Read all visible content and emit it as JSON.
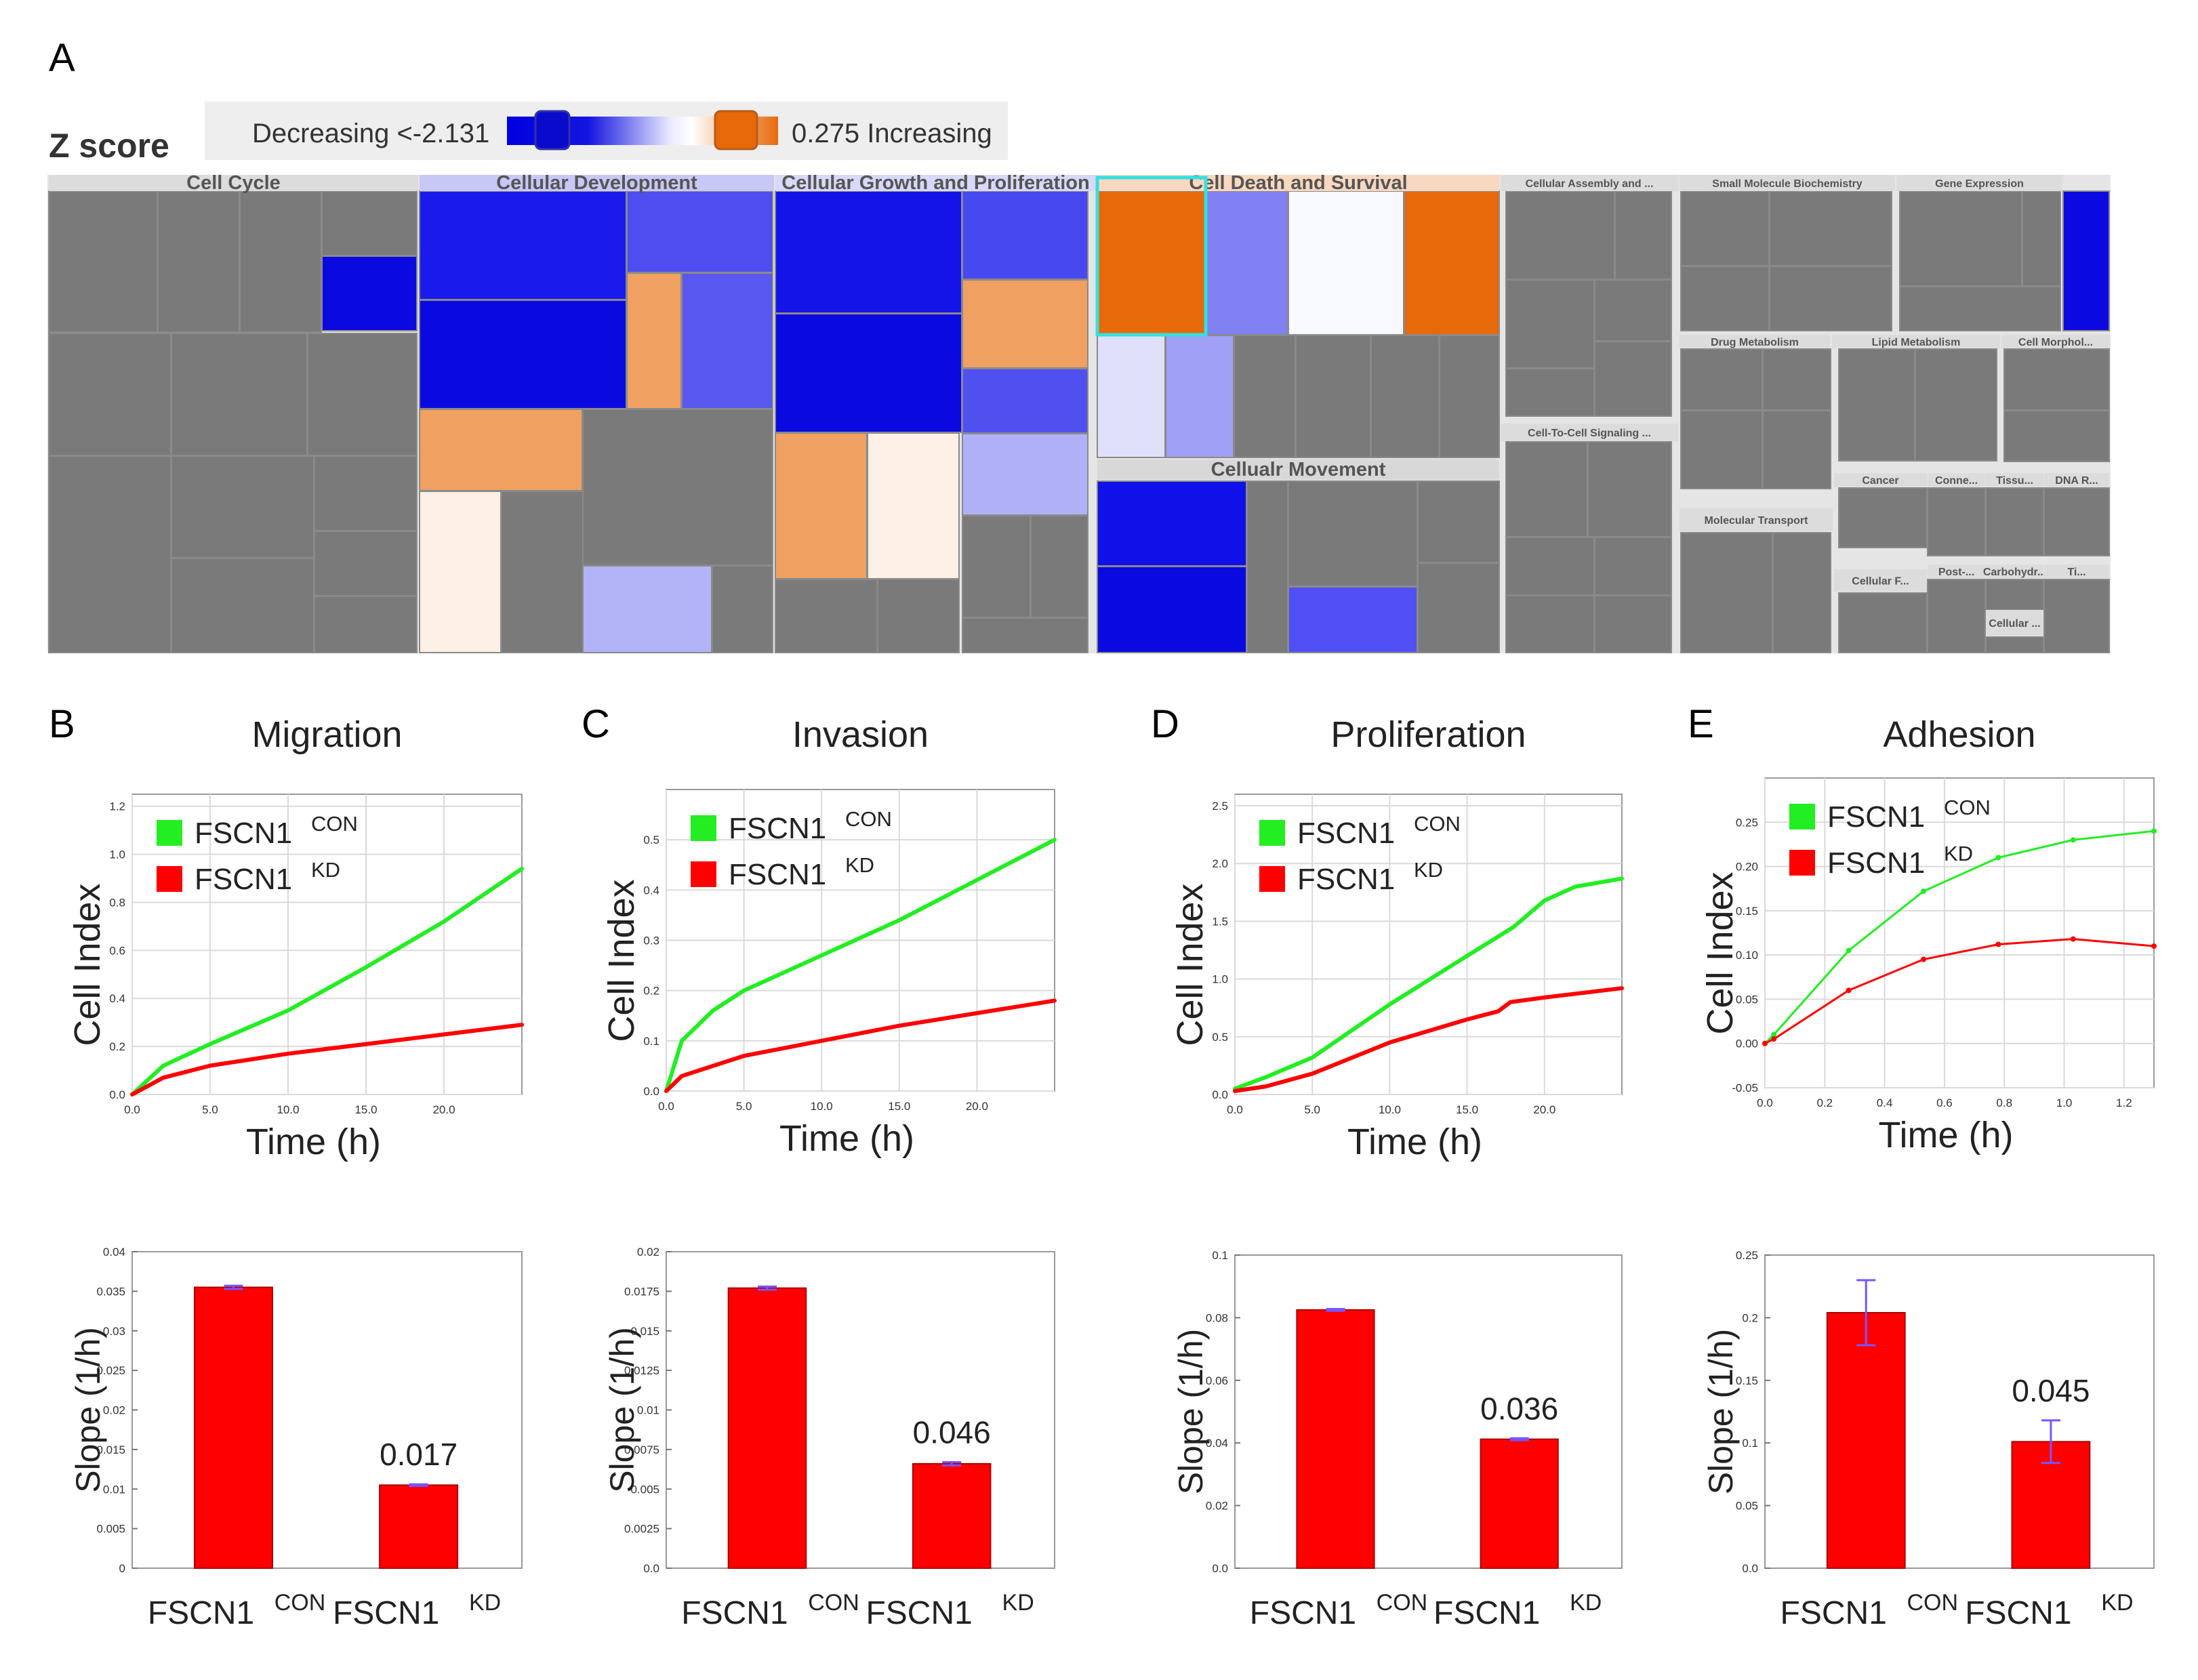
{
  "panel_letters": [
    "A",
    "B",
    "C",
    "D",
    "E"
  ],
  "colors": {
    "con": "#22ee22",
    "kd": "#ff0000",
    "decreasing": "#0a0ae0",
    "increasing": "#e8690a",
    "neutral": "#7a7a7a",
    "error": "#7755ff"
  },
  "panel_a": {
    "zscore_title": "Z score",
    "legend_left": "Decreasing <-2.131",
    "legend_right": "0.275 Increasing",
    "categories": [
      "Cell Cycle",
      "Cellular Development",
      "Cellular Growth and Proliferation",
      "Cell Death and Survival",
      "Cellular Assembly and ...",
      "Small Molecule Biochemistry",
      "Gene Expression",
      "Cellualr Movement",
      "Cell-To-Cell Signaling ...",
      "Drug Metabolism",
      "Lipid Metabolism",
      "Cell Morphol...",
      "Molecular Transport",
      "Cancer",
      "Conne...",
      "Tissu...",
      "DNA R...",
      "Cellular F...",
      "Post-...",
      "Carbohydr...",
      "Ti...",
      "Cellular ..."
    ]
  },
  "chart_data": [
    {
      "type": "line",
      "panel": "B",
      "title": "Migration",
      "xlabel": "Time (h)",
      "ylabel": "Cell Index",
      "xlim": [
        0,
        25
      ],
      "ylim": [
        0,
        1.25
      ],
      "xticks": [
        "0.0",
        "5.0",
        "10.0",
        "15.0",
        "20.0"
      ],
      "yticks": [
        "0.0",
        "0.2",
        "0.4",
        "0.6",
        "0.8",
        "1.0",
        "1.2"
      ],
      "legend": [
        "FSCN1",
        "CON",
        "FSCN1",
        "KD"
      ],
      "series": [
        {
          "name": "FSCN1 CON",
          "x": [
            0,
            2,
            5,
            10,
            15,
            20,
            25
          ],
          "y": [
            0.0,
            0.12,
            0.21,
            0.35,
            0.53,
            0.72,
            0.94
          ]
        },
        {
          "name": "FSCN1 KD",
          "x": [
            0,
            2,
            5,
            10,
            15,
            20,
            25
          ],
          "y": [
            0.0,
            0.07,
            0.12,
            0.17,
            0.21,
            0.25,
            0.29
          ]
        }
      ]
    },
    {
      "type": "line",
      "panel": "C",
      "title": "Invasion",
      "xlabel": "Time (h)",
      "ylabel": "Cell Index",
      "xlim": [
        0,
        25
      ],
      "ylim": [
        0,
        0.6
      ],
      "xticks": [
        "0.0",
        "5.0",
        "10.0",
        "15.0",
        "20.0"
      ],
      "yticks": [
        "0.0",
        "0.1",
        "0.2",
        "0.3",
        "0.4",
        "0.5"
      ],
      "legend": [
        "FSCN1",
        "CON",
        "FSCN1",
        "KD"
      ],
      "series": [
        {
          "name": "FSCN1 CON",
          "x": [
            0,
            1,
            3,
            5,
            10,
            15,
            20,
            25
          ],
          "y": [
            0.0,
            0.1,
            0.16,
            0.2,
            0.27,
            0.34,
            0.42,
            0.5
          ]
        },
        {
          "name": "FSCN1 KD",
          "x": [
            0,
            1,
            3,
            5,
            10,
            15,
            20,
            25
          ],
          "y": [
            0.0,
            0.03,
            0.05,
            0.07,
            0.1,
            0.13,
            0.155,
            0.18
          ]
        }
      ]
    },
    {
      "type": "line",
      "panel": "D",
      "title": "Proliferation",
      "xlabel": "Time (h)",
      "ylabel": "Cell Index",
      "xlim": [
        0,
        25
      ],
      "ylim": [
        0,
        2.6
      ],
      "xticks": [
        "0.0",
        "5.0",
        "10.0",
        "15.0",
        "20.0"
      ],
      "yticks": [
        "0.0",
        "0.5",
        "1.0",
        "1.5",
        "2.0",
        "2.5"
      ],
      "legend": [
        "FSCN1",
        "CON",
        "FSCN1",
        "KD"
      ],
      "series": [
        {
          "name": "FSCN1 CON",
          "x": [
            0,
            2,
            5,
            10,
            15,
            18,
            20,
            22,
            25
          ],
          "y": [
            0.05,
            0.15,
            0.32,
            0.78,
            1.2,
            1.45,
            1.68,
            1.8,
            1.87
          ]
        },
        {
          "name": "FSCN1 KD",
          "x": [
            0,
            2,
            5,
            10,
            15,
            17,
            17.8,
            20,
            25
          ],
          "y": [
            0.03,
            0.07,
            0.18,
            0.45,
            0.65,
            0.72,
            0.8,
            0.84,
            0.92
          ]
        }
      ]
    },
    {
      "type": "line",
      "panel": "E",
      "title": "Adhesion",
      "xlabel": "Time (h)",
      "ylabel": "Cell Index",
      "xlim": [
        0,
        1.3
      ],
      "ylim": [
        -0.05,
        0.3
      ],
      "xticks": [
        "0.0",
        "0.2",
        "0.4",
        "0.6",
        "0.8",
        "1.0",
        "1.2"
      ],
      "yticks": [
        "-0.05",
        "0.00",
        "0.05",
        "0.10",
        "0.15",
        "0.20",
        "0.25"
      ],
      "legend": [
        "FSCN1",
        "CON",
        "FSCN1",
        "KD"
      ],
      "series": [
        {
          "name": "FSCN1 CON",
          "x": [
            0.0,
            0.03,
            0.28,
            0.53,
            0.78,
            1.03,
            1.3
          ],
          "y": [
            0.0,
            0.01,
            0.105,
            0.172,
            0.21,
            0.23,
            0.24
          ]
        },
        {
          "name": "FSCN1 KD",
          "x": [
            0.0,
            0.03,
            0.28,
            0.53,
            0.78,
            1.03,
            1.3
          ],
          "y": [
            0.0,
            0.005,
            0.06,
            0.095,
            0.112,
            0.118,
            0.11
          ]
        }
      ]
    },
    {
      "type": "bar",
      "panel": "B",
      "ylabel": "Slope (1/h)",
      "categories": [
        "FSCN1 CON",
        "FSCN1 KD"
      ],
      "category_labels": [
        "FSCN1",
        "CON",
        "FSCN1",
        "KD"
      ],
      "values": [
        0.0355,
        0.0105
      ],
      "errors": [
        0.0002,
        0.0001
      ],
      "ylim": [
        0,
        0.04
      ],
      "yticks": [
        "0",
        "0.005",
        "0.01",
        "0.015",
        "0.02",
        "0.025",
        "0.03",
        "0.035",
        "0.04"
      ],
      "annotation": "0.017"
    },
    {
      "type": "bar",
      "panel": "C",
      "ylabel": "Slope (1/h)",
      "categories": [
        "FSCN1 CON",
        "FSCN1 KD"
      ],
      "category_labels": [
        "FSCN1",
        "CON",
        "FSCN1",
        "KD"
      ],
      "values": [
        0.0177,
        0.0066
      ],
      "errors": [
        0.0001,
        0.0001
      ],
      "ylim": [
        0,
        0.02
      ],
      "yticks": [
        "0.0",
        "0.0025",
        "0.005",
        "0.0075",
        "0.01",
        "0.0125",
        "0.015",
        "0.0175",
        "0.02"
      ],
      "annotation": "0.046"
    },
    {
      "type": "bar",
      "panel": "D",
      "ylabel": "Slope (1/h)",
      "categories": [
        "FSCN1 CON",
        "FSCN1 KD"
      ],
      "category_labels": [
        "FSCN1",
        "CON",
        "FSCN1",
        "KD"
      ],
      "values": [
        0.0825,
        0.0412
      ],
      "errors": [
        0.0003,
        0.0003
      ],
      "ylim": [
        0,
        0.1
      ],
      "yticks": [
        "0.0",
        "0.02",
        "0.04",
        "0.06",
        "0.08",
        "0.1"
      ],
      "annotation": "0.036"
    },
    {
      "type": "bar",
      "panel": "E",
      "ylabel": "Slope (1/h)",
      "categories": [
        "FSCN1 CON",
        "FSCN1 KD"
      ],
      "category_labels": [
        "FSCN1",
        "CON",
        "FSCN1",
        "KD"
      ],
      "values": [
        0.204,
        0.101
      ],
      "errors": [
        0.026,
        0.017
      ],
      "ylim": [
        0,
        0.25
      ],
      "yticks": [
        "0.0",
        "0.05",
        "0.1",
        "0.15",
        "0.2",
        "0.25"
      ],
      "annotation": "0.045"
    }
  ]
}
